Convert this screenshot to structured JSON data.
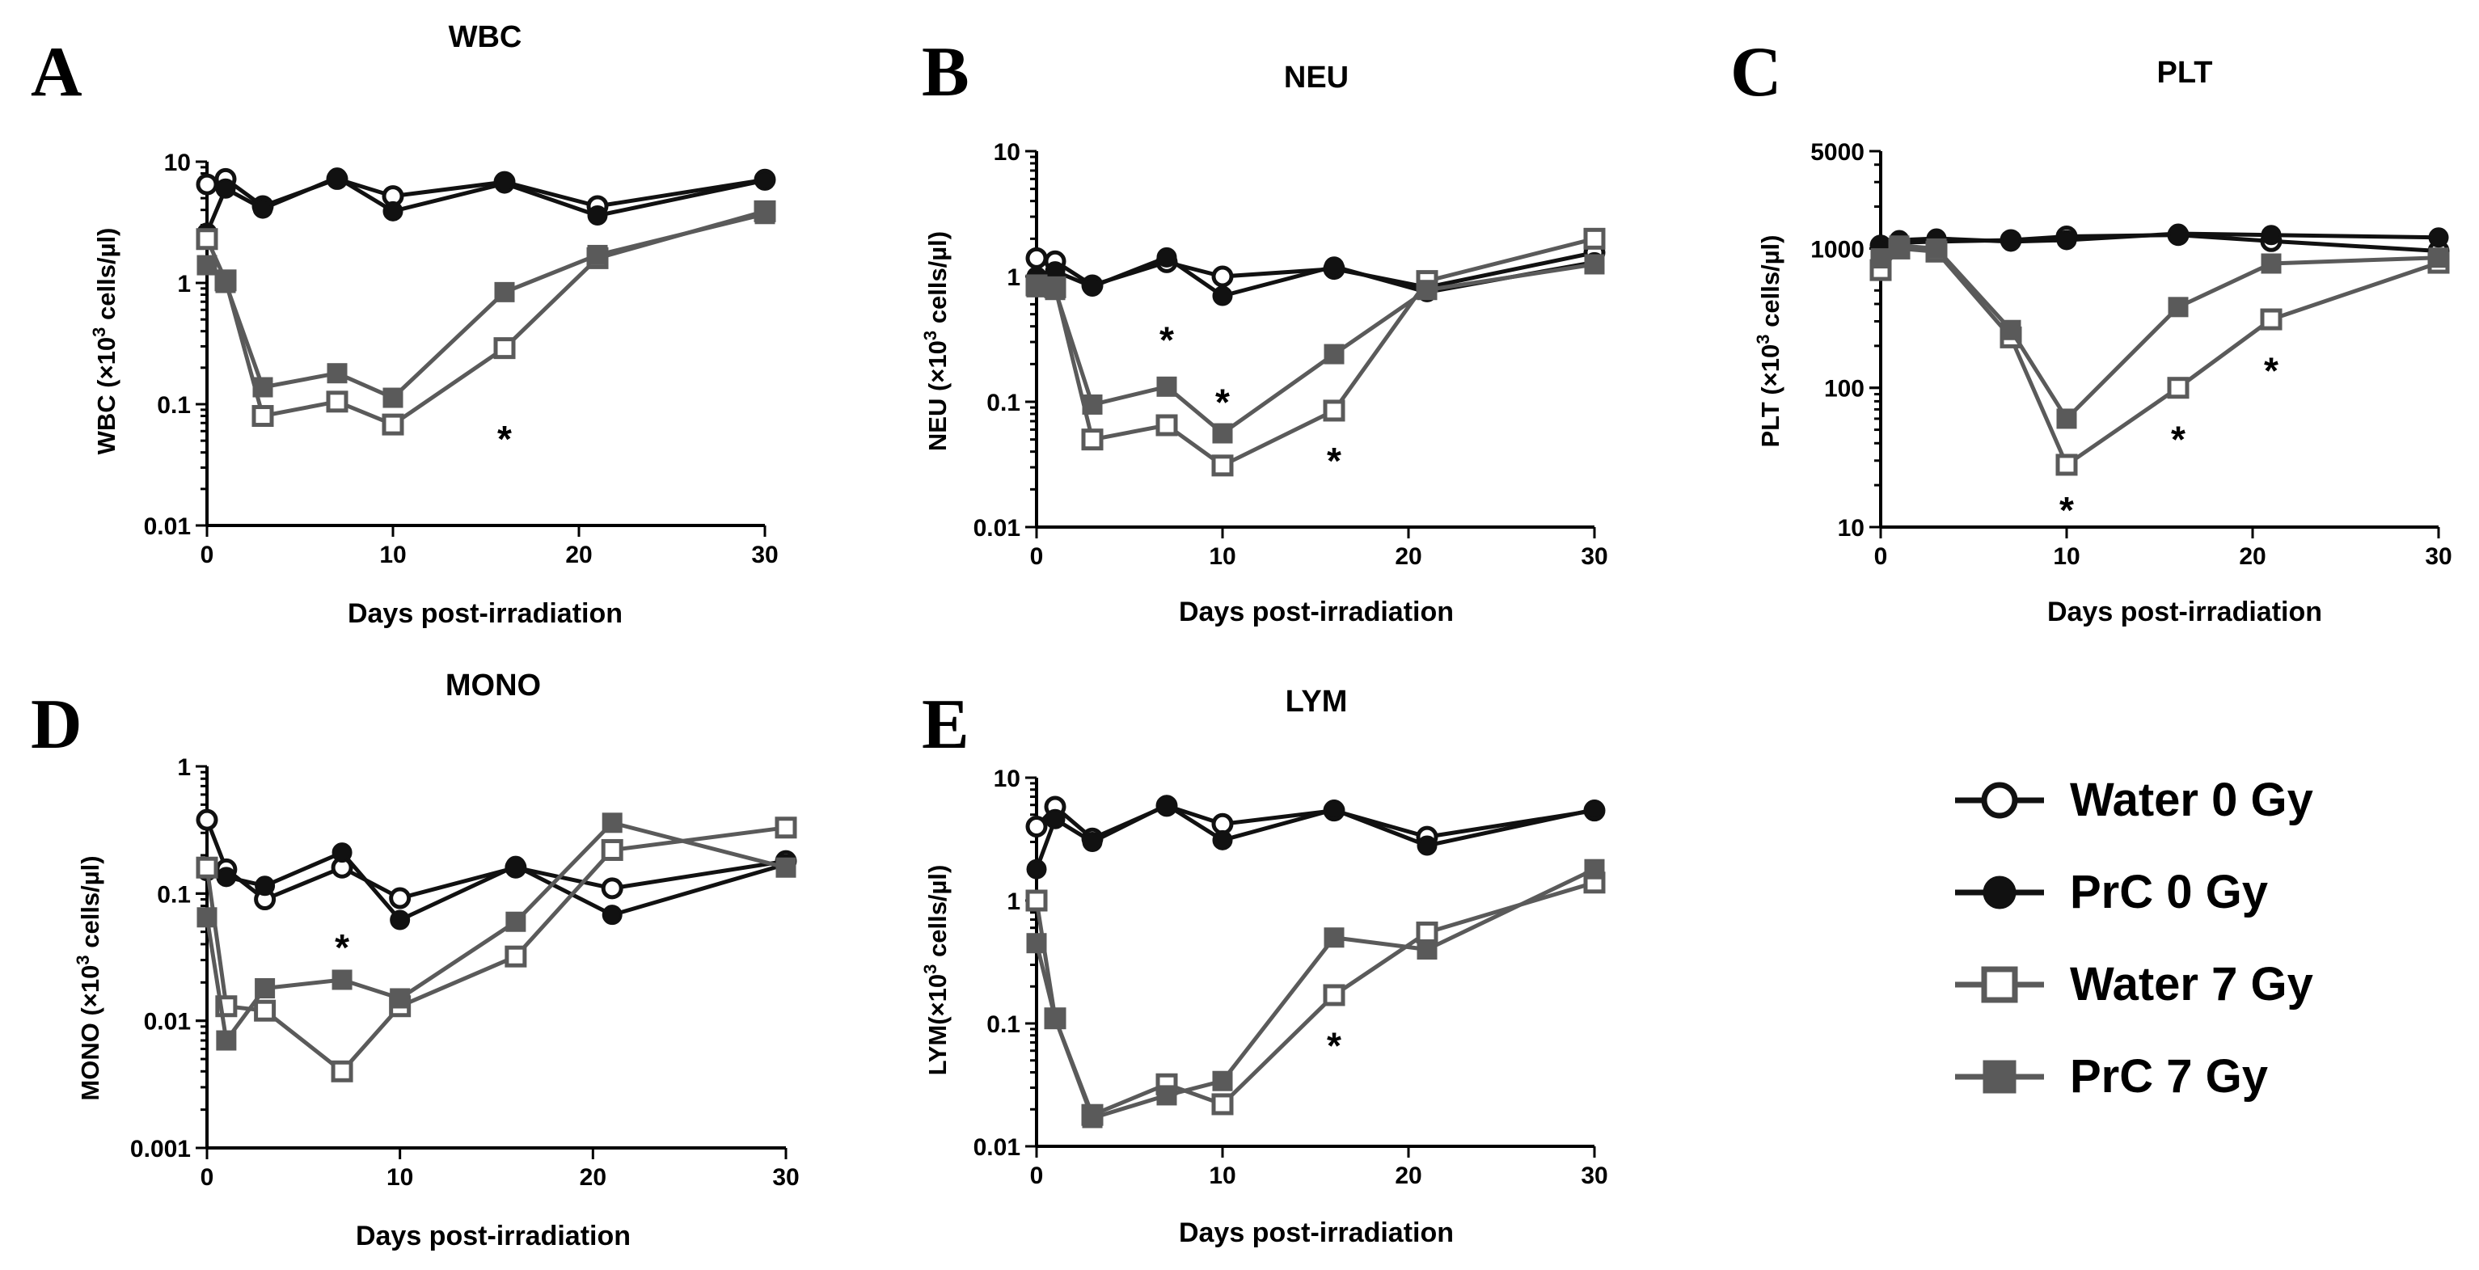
{
  "colors": {
    "black": "#111111",
    "gray": "#5a5a5a"
  },
  "legend": [
    {
      "name": "Water 0 Gy",
      "color": "#111111",
      "marker": "open-circle"
    },
    {
      "name": "PrC 0 Gy",
      "color": "#111111",
      "marker": "filled-circle"
    },
    {
      "name": "Water 7 Gy",
      "color": "#5a5a5a",
      "marker": "open-square"
    },
    {
      "name": "PrC 7 Gy",
      "color": "#5a5a5a",
      "marker": "filled-square"
    }
  ],
  "chart_data": [
    {
      "type": "line",
      "panel": "A",
      "title": "WBC",
      "xlabel": "Days post-irradiation",
      "ylabel": {
        "main": "WBC (×10",
        "sup": "3",
        "rest": " cells/µl)"
      },
      "xlim": [
        0,
        30
      ],
      "xticks": [
        "0",
        "10",
        "20",
        "30"
      ],
      "yscale": "log",
      "ylim": [
        0.01,
        10
      ],
      "yticks": [
        "0.01",
        "0.1",
        "1",
        "10"
      ],
      "x": [
        0,
        1,
        3,
        7,
        10,
        16,
        21,
        30
      ],
      "series": [
        {
          "name": "Water 0 Gy",
          "values": [
            6.5,
            7.2,
            4.3,
            7.2,
            5.2,
            6.8,
            4.3,
            7.1
          ]
        },
        {
          "name": "PrC 0 Gy",
          "values": [
            2.6,
            6.0,
            4.1,
            7.4,
            3.9,
            6.6,
            3.6,
            7.0
          ]
        },
        {
          "name": "Water 7 Gy",
          "values": [
            2.3,
            1.05,
            0.08,
            0.105,
            0.068,
            0.29,
            1.6,
            3.9
          ]
        },
        {
          "name": "PrC 7 Gy",
          "values": [
            1.4,
            1.0,
            0.138,
            0.18,
            0.113,
            0.84,
            1.7,
            3.7
          ]
        }
      ],
      "annotations": [
        {
          "text": "*",
          "x": 16,
          "y": 0.055
        }
      ]
    },
    {
      "type": "line",
      "panel": "B",
      "title": "NEU",
      "xlabel": "Days post-irradiation",
      "ylabel": {
        "main": "NEU (×10",
        "sup": "3",
        "rest": " cells/µl)"
      },
      "xlim": [
        0,
        30
      ],
      "xticks": [
        "0",
        "10",
        "20",
        "30"
      ],
      "yscale": "log",
      "ylim": [
        0.01,
        10
      ],
      "yticks": [
        "0.01",
        "0.1",
        "1",
        "10"
      ],
      "x": [
        0,
        1,
        3,
        7,
        10,
        16,
        21,
        30
      ],
      "series": [
        {
          "name": "Water 0 Gy",
          "values": [
            1.4,
            1.32,
            0.85,
            1.3,
            1.0,
            1.15,
            0.82,
            1.55
          ]
        },
        {
          "name": "PrC 0 Gy",
          "values": [
            1.0,
            1.1,
            0.83,
            1.42,
            0.7,
            1.2,
            0.75,
            1.3
          ]
        },
        {
          "name": "Water 7 Gy",
          "values": [
            0.85,
            0.82,
            0.05,
            0.065,
            0.031,
            0.085,
            0.92,
            2.0
          ]
        },
        {
          "name": "PrC 7 Gy",
          "values": [
            0.82,
            0.78,
            0.095,
            0.132,
            0.056,
            0.24,
            0.78,
            1.25
          ]
        }
      ],
      "annotations": [
        {
          "text": "*",
          "x": 7,
          "y": 0.33
        },
        {
          "text": "*",
          "x": 10,
          "y": 0.105
        },
        {
          "text": "*",
          "x": 16,
          "y": 0.036
        }
      ]
    },
    {
      "type": "line",
      "panel": "C",
      "title": "PLT",
      "xlabel": "Days post-irradiation",
      "ylabel": {
        "main": "PLT (×10",
        "sup": "3",
        "rest": " cells/µl)"
      },
      "xlim": [
        0,
        30
      ],
      "xticks": [
        "0",
        "10",
        "20",
        "30"
      ],
      "yscale": "log",
      "ylim": [
        10,
        5000
      ],
      "yticks": [
        "10",
        "100",
        "1000",
        "5000"
      ],
      "x": [
        0,
        1,
        3,
        7,
        10,
        16,
        21,
        30
      ],
      "series": [
        {
          "name": "Water 0 Gy",
          "values": [
            1050,
            1100,
            1120,
            1150,
            1220,
            1250,
            1130,
            960
          ]
        },
        {
          "name": "PrC 0 Gy",
          "values": [
            1000,
            1150,
            1180,
            1120,
            1150,
            1280,
            1250,
            1200
          ]
        },
        {
          "name": "Water 7 Gy",
          "values": [
            700,
            1000,
            950,
            230,
            28,
            100,
            310,
            790
          ]
        },
        {
          "name": "PrC 7 Gy",
          "values": [
            850,
            1050,
            1000,
            260,
            60,
            380,
            780,
            860
          ]
        }
      ],
      "annotations": [
        {
          "text": "*",
          "x": 10,
          "y": 14
        },
        {
          "text": "*",
          "x": 16,
          "y": 45
        },
        {
          "text": "*",
          "x": 21,
          "y": 140
        }
      ]
    },
    {
      "type": "line",
      "panel": "D",
      "title": "MONO",
      "xlabel": "Days post-irradiation",
      "ylabel": {
        "main": "MONO (×10",
        "sup": "3",
        "rest": " cells/µl)"
      },
      "xlim": [
        0,
        30
      ],
      "xticks": [
        "0",
        "10",
        "20",
        "30"
      ],
      "yscale": "log",
      "ylim": [
        0.001,
        1
      ],
      "yticks": [
        "0.001",
        "0.01",
        "0.1",
        "1"
      ],
      "x": [
        0,
        1,
        3,
        7,
        10,
        16,
        21,
        30
      ],
      "series": [
        {
          "name": "Water 0 Gy",
          "values": [
            0.38,
            0.155,
            0.09,
            0.16,
            0.092,
            0.16,
            0.11,
            0.18
          ]
        },
        {
          "name": "PrC 0 Gy",
          "values": [
            0.15,
            0.135,
            0.115,
            0.21,
            0.062,
            0.165,
            0.068,
            0.17
          ]
        },
        {
          "name": "Water 7 Gy",
          "values": [
            0.16,
            0.013,
            0.012,
            0.004,
            0.013,
            0.032,
            0.22,
            0.33
          ]
        },
        {
          "name": "PrC 7 Gy",
          "values": [
            0.065,
            0.007,
            0.018,
            0.021,
            0.015,
            0.06,
            0.36,
            0.16
          ]
        }
      ],
      "annotations": [
        {
          "text": "*",
          "x": 7,
          "y": 0.04
        }
      ]
    },
    {
      "type": "line",
      "panel": "E",
      "title": "LYM",
      "xlabel": "Days post-irradiation",
      "ylabel": {
        "main": "LYM(×10",
        "sup": "3",
        "rest": " cells/µl)"
      },
      "xlim": [
        0,
        30
      ],
      "xticks": [
        "0",
        "10",
        "20",
        "30"
      ],
      "yscale": "log",
      "ylim": [
        0.01,
        10
      ],
      "yticks": [
        "0.01",
        "0.1",
        "1",
        "10"
      ],
      "x": [
        0,
        1,
        3,
        7,
        10,
        16,
        21,
        30
      ],
      "series": [
        {
          "name": "Water 0 Gy",
          "values": [
            4.0,
            5.8,
            3.2,
            5.9,
            4.2,
            5.4,
            3.3,
            5.4
          ]
        },
        {
          "name": "PrC 0 Gy",
          "values": [
            1.8,
            4.6,
            3.0,
            6.0,
            3.1,
            5.5,
            2.8,
            5.5
          ]
        },
        {
          "name": "Water 7 Gy",
          "values": [
            1.0,
            0.11,
            0.018,
            0.032,
            0.022,
            0.17,
            0.55,
            1.4
          ]
        },
        {
          "name": "PrC 7 Gy",
          "values": [
            0.45,
            0.11,
            0.017,
            0.026,
            0.034,
            0.5,
            0.4,
            1.8
          ]
        }
      ],
      "annotations": [
        {
          "text": "*",
          "x": 16,
          "y": 0.07
        }
      ]
    }
  ]
}
